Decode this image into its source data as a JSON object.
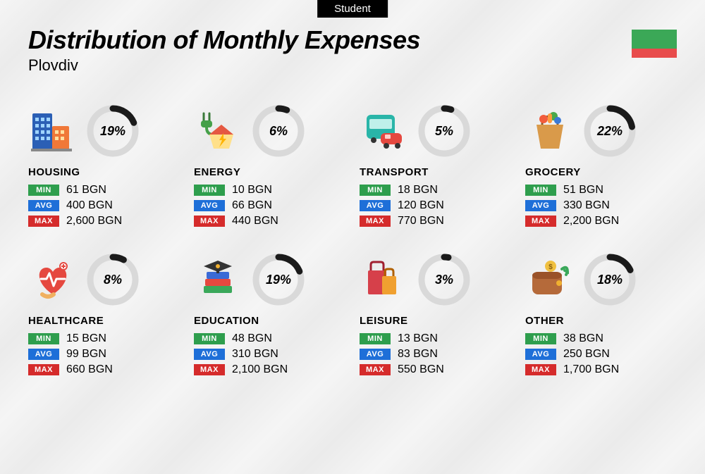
{
  "badge": "Student",
  "title": "Distribution of Monthly Expenses",
  "subtitle": "Plovdiv",
  "flag_colors": [
    "#3ba857",
    "#3ba857",
    "#e84c4c"
  ],
  "currency": "BGN",
  "donut": {
    "track_color": "#d9d9d9",
    "arc_color": "#1a1a1a",
    "stroke_width": 9,
    "radius": 32,
    "size": 76
  },
  "pills": {
    "min": {
      "label": "MIN",
      "bg": "#2e9e4d"
    },
    "avg": {
      "label": "AVG",
      "bg": "#1e6fd8"
    },
    "max": {
      "label": "MAX",
      "bg": "#d52b2b"
    }
  },
  "categories": [
    {
      "name": "HOUSING",
      "percent": 19,
      "min": "61",
      "avg": "400",
      "max": "2,600",
      "icon": "buildings"
    },
    {
      "name": "ENERGY",
      "percent": 6,
      "min": "10",
      "avg": "66",
      "max": "440",
      "icon": "energy"
    },
    {
      "name": "TRANSPORT",
      "percent": 5,
      "min": "18",
      "avg": "120",
      "max": "770",
      "icon": "transport"
    },
    {
      "name": "GROCERY",
      "percent": 22,
      "min": "51",
      "avg": "330",
      "max": "2,200",
      "icon": "grocery"
    },
    {
      "name": "HEALTHCARE",
      "percent": 8,
      "min": "15",
      "avg": "99",
      "max": "660",
      "icon": "healthcare"
    },
    {
      "name": "EDUCATION",
      "percent": 19,
      "min": "48",
      "avg": "310",
      "max": "2,100",
      "icon": "education"
    },
    {
      "name": "LEISURE",
      "percent": 3,
      "min": "13",
      "avg": "83",
      "max": "550",
      "icon": "leisure"
    },
    {
      "name": "OTHER",
      "percent": 18,
      "min": "38",
      "avg": "250",
      "max": "1,700",
      "icon": "other"
    }
  ],
  "icons": {
    "buildings": {
      "type": "svg"
    },
    "energy": {
      "type": "svg"
    },
    "transport": {
      "type": "svg"
    },
    "grocery": {
      "type": "svg"
    },
    "healthcare": {
      "type": "svg"
    },
    "education": {
      "type": "svg"
    },
    "leisure": {
      "type": "svg"
    },
    "other": {
      "type": "svg"
    }
  }
}
